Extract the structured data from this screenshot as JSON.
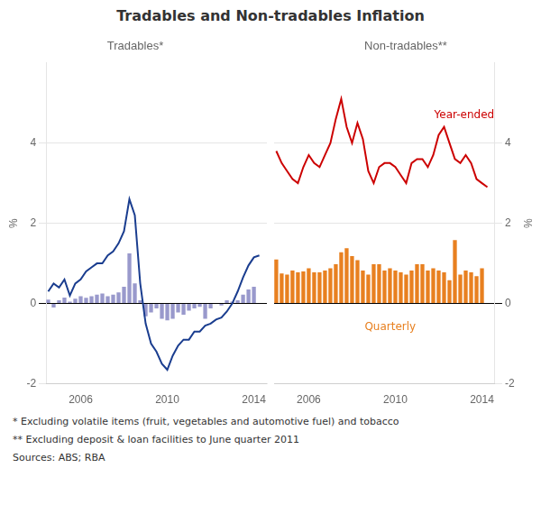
{
  "chart_data": [
    {
      "type": "bar",
      "title": "Tradables and Non-tradables Inflation",
      "subtitle": "Tradables*",
      "ylabel": "%",
      "x": [
        2004.5,
        2004.75,
        2005.0,
        2005.25,
        2005.5,
        2005.75,
        2006.0,
        2006.25,
        2006.5,
        2006.75,
        2007.0,
        2007.25,
        2007.5,
        2007.75,
        2008.0,
        2008.25,
        2008.5,
        2008.75,
        2009.0,
        2009.25,
        2009.5,
        2009.75,
        2010.0,
        2010.25,
        2010.5,
        2010.75,
        2011.0,
        2011.25,
        2011.5,
        2011.75,
        2012.0,
        2012.25,
        2012.5,
        2012.75,
        2013.0,
        2013.25,
        2013.5,
        2013.75,
        2014.0,
        2014.25
      ],
      "series": [
        {
          "type": "bar",
          "color": "#9999cc",
          "values": [
            0.1,
            -0.1,
            0.08,
            0.15,
            0.05,
            0.12,
            0.18,
            0.14,
            0.18,
            0.22,
            0.25,
            0.18,
            0.22,
            0.28,
            0.42,
            1.25,
            0.5,
            0.08,
            -0.32,
            -0.22,
            -0.12,
            -0.38,
            -0.42,
            -0.38,
            -0.22,
            -0.28,
            -0.18,
            -0.12,
            -0.08,
            -0.38,
            -0.12,
            0.0,
            -0.05,
            0.08,
            0.05,
            0.08,
            0.22,
            0.35,
            0.42,
            0.0
          ]
        },
        {
          "type": "line",
          "color": "#1a3d8f",
          "values": [
            0.3,
            0.5,
            0.4,
            0.6,
            0.2,
            0.5,
            0.6,
            0.8,
            0.9,
            1.0,
            1.0,
            1.2,
            1.3,
            1.5,
            1.8,
            2.6,
            2.2,
            0.5,
            -0.5,
            -1.0,
            -1.2,
            -1.5,
            -1.65,
            -1.3,
            -1.05,
            -0.9,
            -0.9,
            -0.7,
            -0.7,
            -0.55,
            -0.5,
            -0.4,
            -0.35,
            -0.2,
            0.0,
            0.3,
            0.65,
            0.95,
            1.15,
            1.2
          ]
        }
      ],
      "xlim": [
        2004.4,
        2014.6
      ],
      "xticks": [
        2006,
        2010,
        2014
      ],
      "ylim": [
        -2,
        6
      ],
      "yticks": [
        -2,
        0,
        2,
        4
      ],
      "grid": true,
      "footnotes": [
        "* Excluding volatile items (fruit, vegetables and automotive fuel) and tobacco",
        "** Excluding deposit & loan facilities to June quarter 2011",
        "Sources:  ABS; RBA"
      ]
    },
    {
      "type": "bar",
      "subtitle": "Non-tradables**",
      "ylabel": "%",
      "x": [
        2004.5,
        2004.75,
        2005.0,
        2005.25,
        2005.5,
        2005.75,
        2006.0,
        2006.25,
        2006.5,
        2006.75,
        2007.0,
        2007.25,
        2007.5,
        2007.75,
        2008.0,
        2008.25,
        2008.5,
        2008.75,
        2009.0,
        2009.25,
        2009.5,
        2009.75,
        2010.0,
        2010.25,
        2010.5,
        2010.75,
        2011.0,
        2011.25,
        2011.5,
        2011.75,
        2012.0,
        2012.25,
        2012.5,
        2012.75,
        2013.0,
        2013.25,
        2013.5,
        2013.75,
        2014.0,
        2014.25
      ],
      "series": [
        {
          "type": "bar",
          "color": "#e88020",
          "values": [
            1.1,
            0.75,
            0.72,
            0.82,
            0.78,
            0.8,
            0.88,
            0.78,
            0.78,
            0.82,
            0.88,
            0.98,
            1.28,
            1.38,
            1.18,
            1.08,
            0.82,
            0.72,
            0.98,
            0.98,
            0.82,
            0.88,
            0.82,
            0.78,
            0.72,
            0.82,
            0.98,
            0.98,
            0.82,
            0.88,
            0.82,
            0.78,
            0.58,
            1.58,
            0.72,
            0.82,
            0.78,
            0.68,
            0.88,
            0.0
          ]
        },
        {
          "type": "line",
          "color": "#cc0000",
          "values": [
            3.8,
            3.5,
            3.3,
            3.1,
            3.0,
            3.4,
            3.7,
            3.5,
            3.4,
            3.7,
            4.0,
            4.6,
            5.1,
            4.4,
            4.0,
            4.5,
            4.1,
            3.3,
            3.0,
            3.4,
            3.5,
            3.5,
            3.4,
            3.2,
            3.0,
            3.5,
            3.6,
            3.6,
            3.4,
            3.7,
            4.2,
            4.4,
            4.0,
            3.6,
            3.5,
            3.7,
            3.5,
            3.1,
            3.0,
            2.9
          ]
        }
      ],
      "xlim": [
        2004.4,
        2014.6
      ],
      "xticks": [
        2006,
        2010,
        2014
      ],
      "ylim": [
        -2,
        6
      ],
      "yticks": [
        -2,
        0,
        2,
        4
      ],
      "grid": true,
      "annotations": [
        {
          "text": "Year-ended",
          "color": "#cc0000"
        },
        {
          "text": "Quarterly",
          "color": "#e88020"
        }
      ]
    }
  ]
}
